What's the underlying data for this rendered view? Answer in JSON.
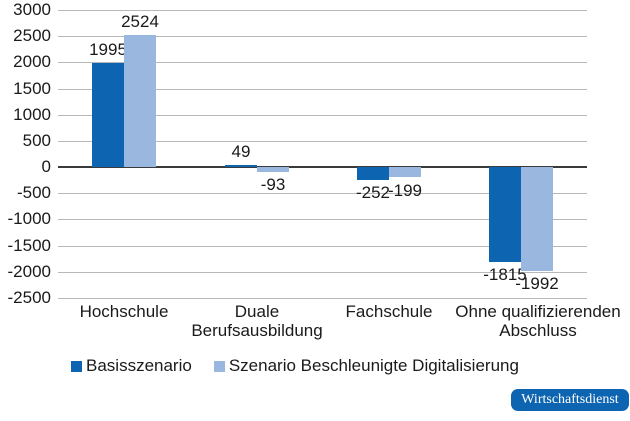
{
  "chart_data": {
    "type": "bar",
    "title": "",
    "xlabel": "",
    "ylabel": "",
    "ylim": [
      -2500,
      3000
    ],
    "yticks": [
      3000,
      2500,
      2000,
      1500,
      1000,
      500,
      0,
      -500,
      -1000,
      -1500,
      -2000,
      -2500
    ],
    "ytick_labels": [
      "3000",
      "2500",
      "2000",
      "1500",
      "1000",
      "500",
      "0",
      "-500",
      "-1000",
      "-1500",
      "-2000",
      "-2500"
    ],
    "categories": [
      "Hochschule",
      "Duale Berufsausbildung",
      "Fachschule",
      "Ohne qualifizierenden Abschluss"
    ],
    "category_lines": [
      [
        "Hochschule"
      ],
      [
        "Duale",
        "Berufsausbildung"
      ],
      [
        "Fachschule"
      ],
      [
        "Ohne qualifizierenden",
        "Abschluss"
      ]
    ],
    "series": [
      {
        "name": "Basisszenario",
        "color": "#0d64b0",
        "values": [
          1995,
          49,
          -252,
          -1815
        ]
      },
      {
        "name": "Szenario Beschleunigte Digitalisierung",
        "color": "#9ab7e0",
        "values": [
          2524,
          -93,
          -199,
          -1992
        ]
      }
    ],
    "data_labels": [
      [
        "1995",
        "49",
        "-252",
        "-1815"
      ],
      [
        "2524",
        "-93",
        "-199",
        "-1992"
      ]
    ],
    "grid": true,
    "legend_position": "bottom"
  },
  "legend": {
    "items": [
      {
        "label": "Basisszenario",
        "color": "#0d64b0"
      },
      {
        "label": "Szenario Beschleunigte Digitalisierung",
        "color": "#9ab7e0"
      }
    ]
  },
  "badge": {
    "label": "Wirtschaftsdienst",
    "color": "#0d64b0"
  }
}
